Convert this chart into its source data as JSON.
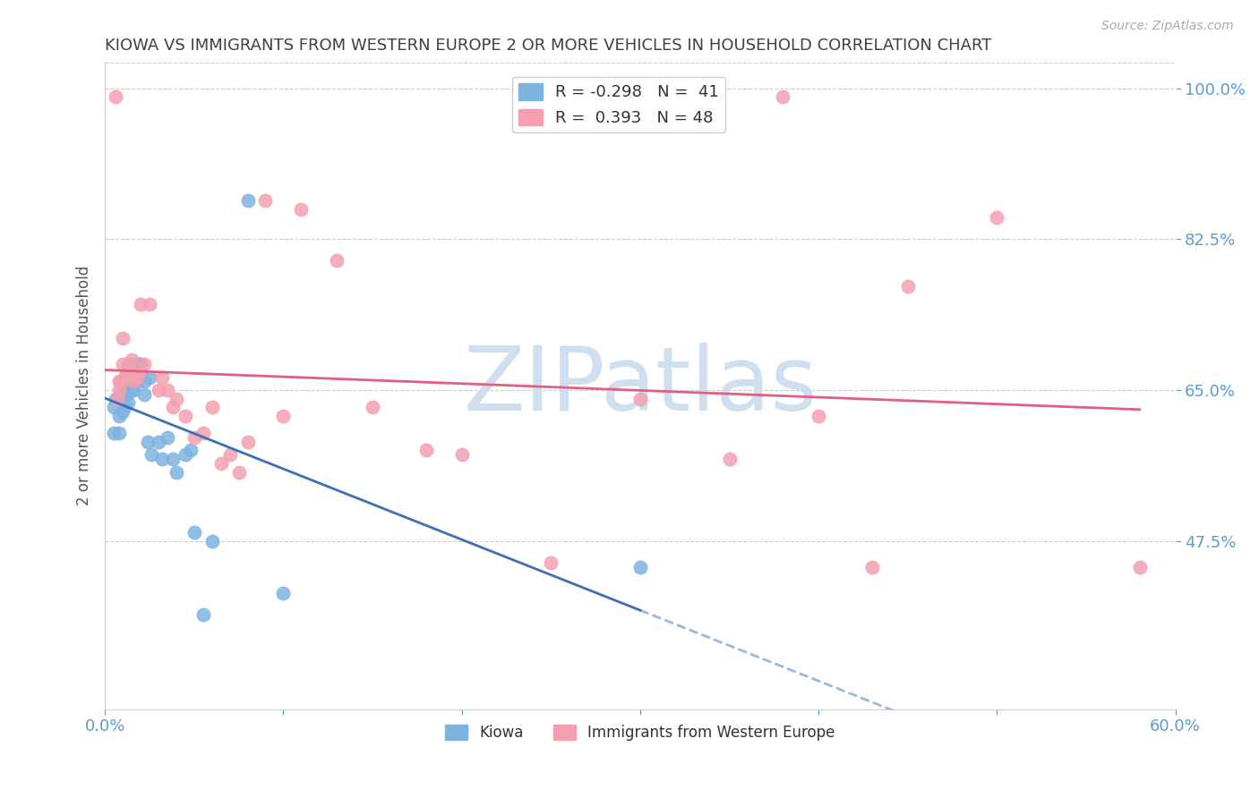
{
  "title": "KIOWA VS IMMIGRANTS FROM WESTERN EUROPE 2 OR MORE VEHICLES IN HOUSEHOLD CORRELATION CHART",
  "source": "Source: ZipAtlas.com",
  "ylabel": "2 or more Vehicles in Household",
  "xlim": [
    0.0,
    0.6
  ],
  "ylim": [
    0.28,
    1.03
  ],
  "yticks": [
    0.475,
    0.65,
    0.825,
    1.0
  ],
  "ytick_labels": [
    "47.5%",
    "65.0%",
    "82.5%",
    "100.0%"
  ],
  "xticks": [
    0.0,
    0.1,
    0.2,
    0.3,
    0.4,
    0.5,
    0.6
  ],
  "xtick_labels": [
    "0.0%",
    "",
    "",
    "",
    "",
    "",
    "60.0%"
  ],
  "legend_r1": "R = -0.298",
  "legend_n1": "N =  41",
  "legend_r2": "R =  0.393",
  "legend_n2": "N = 48",
  "axis_color": "#5b9bd5",
  "title_color": "#404040",
  "watermark": "ZIPatlas",
  "watermark_color": "#d0dff0",
  "blue_color": "#7db3e0",
  "pink_color": "#f4a0b0",
  "blue_line_color": "#3a6fba",
  "pink_line_color": "#e06080",
  "kiowa_x": [
    0.005,
    0.005,
    0.006,
    0.008,
    0.008,
    0.009,
    0.01,
    0.01,
    0.01,
    0.011,
    0.012,
    0.012,
    0.013,
    0.014,
    0.015,
    0.015,
    0.016,
    0.016,
    0.017,
    0.018,
    0.019,
    0.02,
    0.02,
    0.022,
    0.022,
    0.024,
    0.025,
    0.026,
    0.03,
    0.032,
    0.035,
    0.038,
    0.04,
    0.045,
    0.048,
    0.05,
    0.055,
    0.06,
    0.08,
    0.1,
    0.3
  ],
  "kiowa_y": [
    0.63,
    0.6,
    0.64,
    0.62,
    0.6,
    0.645,
    0.66,
    0.64,
    0.625,
    0.63,
    0.645,
    0.67,
    0.635,
    0.68,
    0.65,
    0.67,
    0.65,
    0.67,
    0.68,
    0.66,
    0.68,
    0.68,
    0.67,
    0.645,
    0.66,
    0.59,
    0.665,
    0.575,
    0.59,
    0.57,
    0.595,
    0.57,
    0.555,
    0.575,
    0.58,
    0.485,
    0.39,
    0.475,
    0.87,
    0.415,
    0.445
  ],
  "immig_x": [
    0.006,
    0.007,
    0.008,
    0.008,
    0.009,
    0.01,
    0.01,
    0.011,
    0.012,
    0.013,
    0.014,
    0.015,
    0.016,
    0.017,
    0.018,
    0.019,
    0.02,
    0.022,
    0.025,
    0.03,
    0.032,
    0.035,
    0.038,
    0.04,
    0.045,
    0.05,
    0.055,
    0.06,
    0.065,
    0.07,
    0.075,
    0.08,
    0.09,
    0.1,
    0.11,
    0.13,
    0.15,
    0.18,
    0.2,
    0.25,
    0.3,
    0.35,
    0.38,
    0.4,
    0.43,
    0.45,
    0.5,
    0.58
  ],
  "immig_y": [
    0.99,
    0.64,
    0.66,
    0.65,
    0.66,
    0.71,
    0.68,
    0.665,
    0.665,
    0.68,
    0.67,
    0.685,
    0.66,
    0.67,
    0.665,
    0.67,
    0.75,
    0.68,
    0.75,
    0.65,
    0.665,
    0.65,
    0.63,
    0.64,
    0.62,
    0.595,
    0.6,
    0.63,
    0.565,
    0.575,
    0.555,
    0.59,
    0.87,
    0.62,
    0.86,
    0.8,
    0.63,
    0.58,
    0.575,
    0.45,
    0.64,
    0.57,
    0.99,
    0.62,
    0.445,
    0.77,
    0.85,
    0.445
  ]
}
